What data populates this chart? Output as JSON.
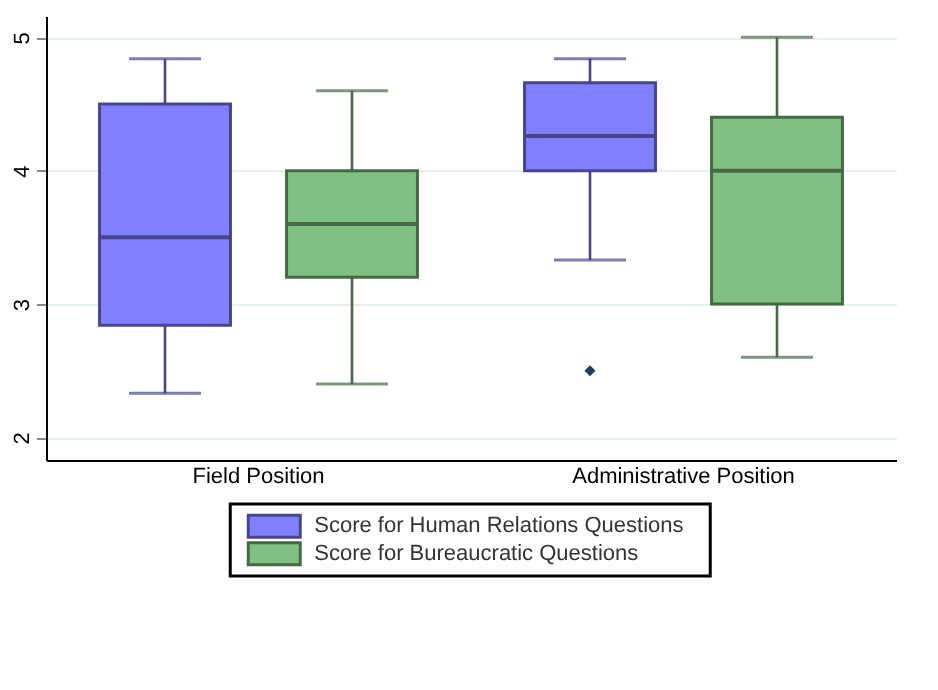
{
  "chart_data": {
    "type": "box",
    "categories": [
      "Field Position",
      "Administrative Position"
    ],
    "series": [
      {
        "name": "Score for Human Relations Questions",
        "color": "#8080ff",
        "boxes": [
          {
            "low": 2.33,
            "q1": 2.84,
            "median": 3.5,
            "q3": 4.5,
            "high": 4.84
          },
          {
            "low": 3.33,
            "q1": 4.0,
            "median": 4.26,
            "q3": 4.66,
            "high": 4.84,
            "outliers": [
              2.5
            ]
          }
        ]
      },
      {
        "name": "Score for Bureaucratic Questions",
        "color": "#80c080",
        "boxes": [
          {
            "low": 2.4,
            "q1": 3.2,
            "median": 3.6,
            "q3": 4.0,
            "high": 4.6
          },
          {
            "low": 2.6,
            "q1": 3.0,
            "median": 4.0,
            "q3": 4.4,
            "high": 5.0
          }
        ]
      }
    ],
    "ylim": [
      1.83,
      5.16
    ],
    "yticks": [
      2,
      3,
      4,
      5
    ],
    "grid": "y",
    "legend": "bottom"
  }
}
